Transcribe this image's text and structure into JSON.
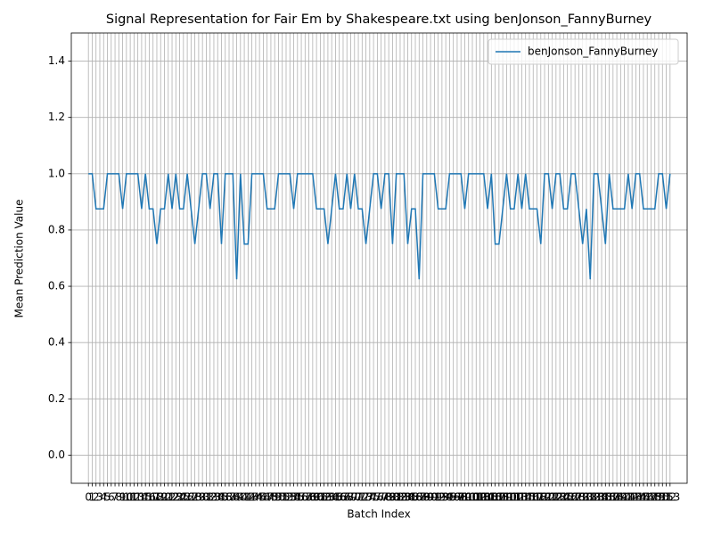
{
  "chart_data": {
    "type": "line",
    "title": "Signal Representation for Fair Em by Shakespeare.txt using benJonson_FannyBurney",
    "x_label": "Batch Index",
    "y_label": "Mean Prediction Value",
    "x": [
      0,
      1,
      2,
      3,
      4,
      5,
      6,
      7,
      8,
      9,
      10,
      11,
      12,
      13,
      14,
      15,
      16,
      17,
      18,
      19,
      20,
      21,
      22,
      23,
      24,
      25,
      26,
      27,
      28,
      29,
      30,
      31,
      32,
      33,
      34,
      35,
      36,
      37,
      38,
      39,
      40,
      41,
      42,
      43,
      44,
      45,
      46,
      47,
      48,
      49,
      50,
      51,
      52,
      53,
      54,
      55,
      56,
      57,
      58,
      59,
      60,
      61,
      62,
      63,
      64,
      65,
      66,
      67,
      68,
      69,
      70,
      71,
      72,
      73,
      74,
      75,
      76,
      77,
      78,
      79,
      80,
      81,
      82,
      83,
      84,
      85,
      86,
      87,
      88,
      89,
      90,
      91,
      92,
      93,
      94,
      95,
      96,
      97,
      98,
      99,
      100,
      101,
      102,
      103,
      104,
      105,
      106,
      107,
      108,
      109,
      110,
      111,
      112,
      113,
      114,
      115,
      116,
      117,
      118,
      119,
      120,
      121,
      122,
      123,
      124,
      125,
      126,
      127,
      128,
      129,
      130,
      131,
      132,
      133,
      134,
      135,
      136,
      137,
      138,
      139,
      140,
      141,
      142,
      143,
      144,
      145,
      146,
      147,
      148,
      149,
      150,
      151,
      152,
      153
    ],
    "series": [
      {
        "name": "benJonson_FannyBurney",
        "color": "#1f77b4",
        "values": [
          1,
          1,
          0.875,
          0.875,
          0.875,
          1,
          1,
          1,
          1,
          0.875,
          1,
          1,
          1,
          1,
          0.875,
          1,
          0.875,
          0.875,
          0.75,
          0.875,
          0.875,
          1,
          0.875,
          1,
          0.875,
          0.875,
          1,
          0.875,
          0.75,
          0.875,
          1,
          1,
          0.875,
          1,
          1,
          0.75,
          1,
          1,
          1,
          0.625,
          1,
          0.75,
          0.75,
          1,
          1,
          1,
          1,
          0.875,
          0.875,
          0.875,
          1,
          1,
          1,
          1,
          0.875,
          1,
          1,
          1,
          1,
          1,
          0.875,
          0.875,
          0.875,
          0.75,
          0.875,
          1,
          0.875,
          0.875,
          1,
          0.875,
          1,
          0.875,
          0.875,
          0.75,
          0.875,
          1,
          1,
          0.875,
          1,
          1,
          0.75,
          1,
          1,
          1,
          0.75,
          0.875,
          0.875,
          0.625,
          1,
          1,
          1,
          1,
          0.875,
          0.875,
          0.875,
          1,
          1,
          1,
          1,
          0.875,
          1,
          1,
          1,
          1,
          1,
          0.875,
          1,
          0.75,
          0.75,
          0.875,
          1,
          0.875,
          0.875,
          1,
          0.875,
          1,
          0.875,
          0.875,
          0.875,
          0.75,
          1,
          1,
          0.875,
          1,
          1,
          0.875,
          0.875,
          1,
          1,
          0.875,
          0.75,
          0.875,
          0.625,
          1,
          1,
          0.875,
          0.75,
          1,
          0.875,
          0.875,
          0.875,
          0.875,
          1,
          0.875,
          1,
          1,
          0.875,
          0.875,
          0.875,
          0.875,
          1,
          1,
          0.875,
          1
        ]
      }
    ],
    "xlim": [
      -4.5,
      157.5
    ],
    "xticks": [
      0,
      1,
      2,
      3,
      4,
      5,
      6,
      7,
      8,
      9,
      10,
      11,
      12,
      13,
      14,
      15,
      16,
      17,
      18,
      19,
      20,
      21,
      22,
      23,
      24,
      25,
      26,
      27,
      28,
      29,
      30,
      31,
      32,
      33,
      34,
      35,
      36,
      37,
      38,
      39,
      40,
      41,
      42,
      43,
      44,
      45,
      46,
      47,
      48,
      49,
      50,
      51,
      52,
      53,
      54,
      55,
      56,
      57,
      58,
      59,
      60,
      61,
      62,
      63,
      64,
      65,
      66,
      67,
      68,
      69,
      70,
      71,
      72,
      73,
      74,
      75,
      76,
      77,
      78,
      79,
      80,
      81,
      82,
      83,
      84,
      85,
      86,
      87,
      88,
      89,
      90,
      91,
      92,
      93,
      94,
      95,
      96,
      97,
      98,
      99,
      100,
      101,
      102,
      103,
      104,
      105,
      106,
      107,
      108,
      109,
      110,
      111,
      112,
      113,
      114,
      115,
      116,
      117,
      118,
      119,
      120,
      121,
      122,
      123,
      124,
      125,
      126,
      127,
      128,
      129,
      130,
      131,
      132,
      133,
      134,
      135,
      136,
      137,
      138,
      139,
      140,
      141,
      142,
      143,
      144,
      145,
      146,
      147,
      148,
      149,
      150,
      151,
      152,
      153
    ],
    "ylim": [
      -0.1,
      1.5
    ],
    "yticks": [
      {
        "value": 0,
        "label": "0.0"
      },
      0.2,
      0.4,
      0.6,
      0.8,
      {
        "value": 1,
        "label": "1.0"
      },
      1.2,
      1.4
    ],
    "grid": true,
    "legend": "upper right"
  }
}
